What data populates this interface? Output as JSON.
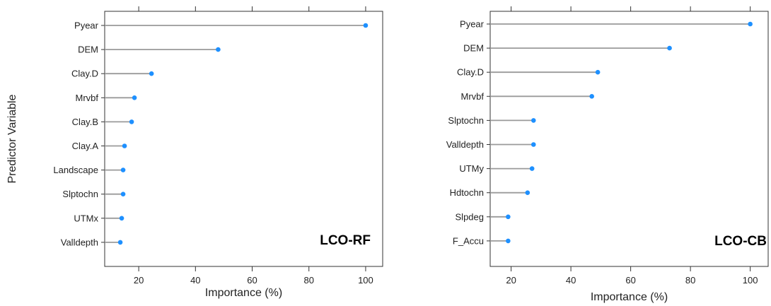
{
  "chart_data": [
    {
      "type": "dot",
      "panel_label": "LCO-RF",
      "xlabel": "Importance (%)",
      "ylabel": "Predictor Variable",
      "xlim": [
        8,
        106
      ],
      "xticks": [
        20,
        40,
        60,
        80,
        100
      ],
      "categories": [
        "Pyear",
        "DEM",
        "Clay.D",
        "Mrvbf",
        "Clay.B",
        "Clay.A",
        "Landscape",
        "Slptochn",
        "UTMx",
        "Valldepth"
      ],
      "values": [
        100,
        48,
        24.5,
        18.5,
        17.5,
        15,
        14.5,
        14.5,
        14,
        13.5
      ],
      "grid": false,
      "point_color": "#1e90ff",
      "stem_color": "#9a9a9a"
    },
    {
      "type": "dot",
      "panel_label": "LCO-CB",
      "xlabel": "Importance (%)",
      "ylabel": "",
      "xlim": [
        13,
        106
      ],
      "xticks": [
        20,
        40,
        60,
        80,
        100
      ],
      "categories": [
        "Pyear",
        "DEM",
        "Clay.D",
        "Mrvbf",
        "Slptochn",
        "Valldepth",
        "UTMy",
        "Hdtochn",
        "Slpdeg",
        "F_Accu"
      ],
      "values": [
        100,
        73,
        49,
        47,
        27.5,
        27.5,
        27,
        25.5,
        19,
        19
      ],
      "grid": false,
      "point_color": "#1e90ff",
      "stem_color": "#9a9a9a"
    }
  ]
}
